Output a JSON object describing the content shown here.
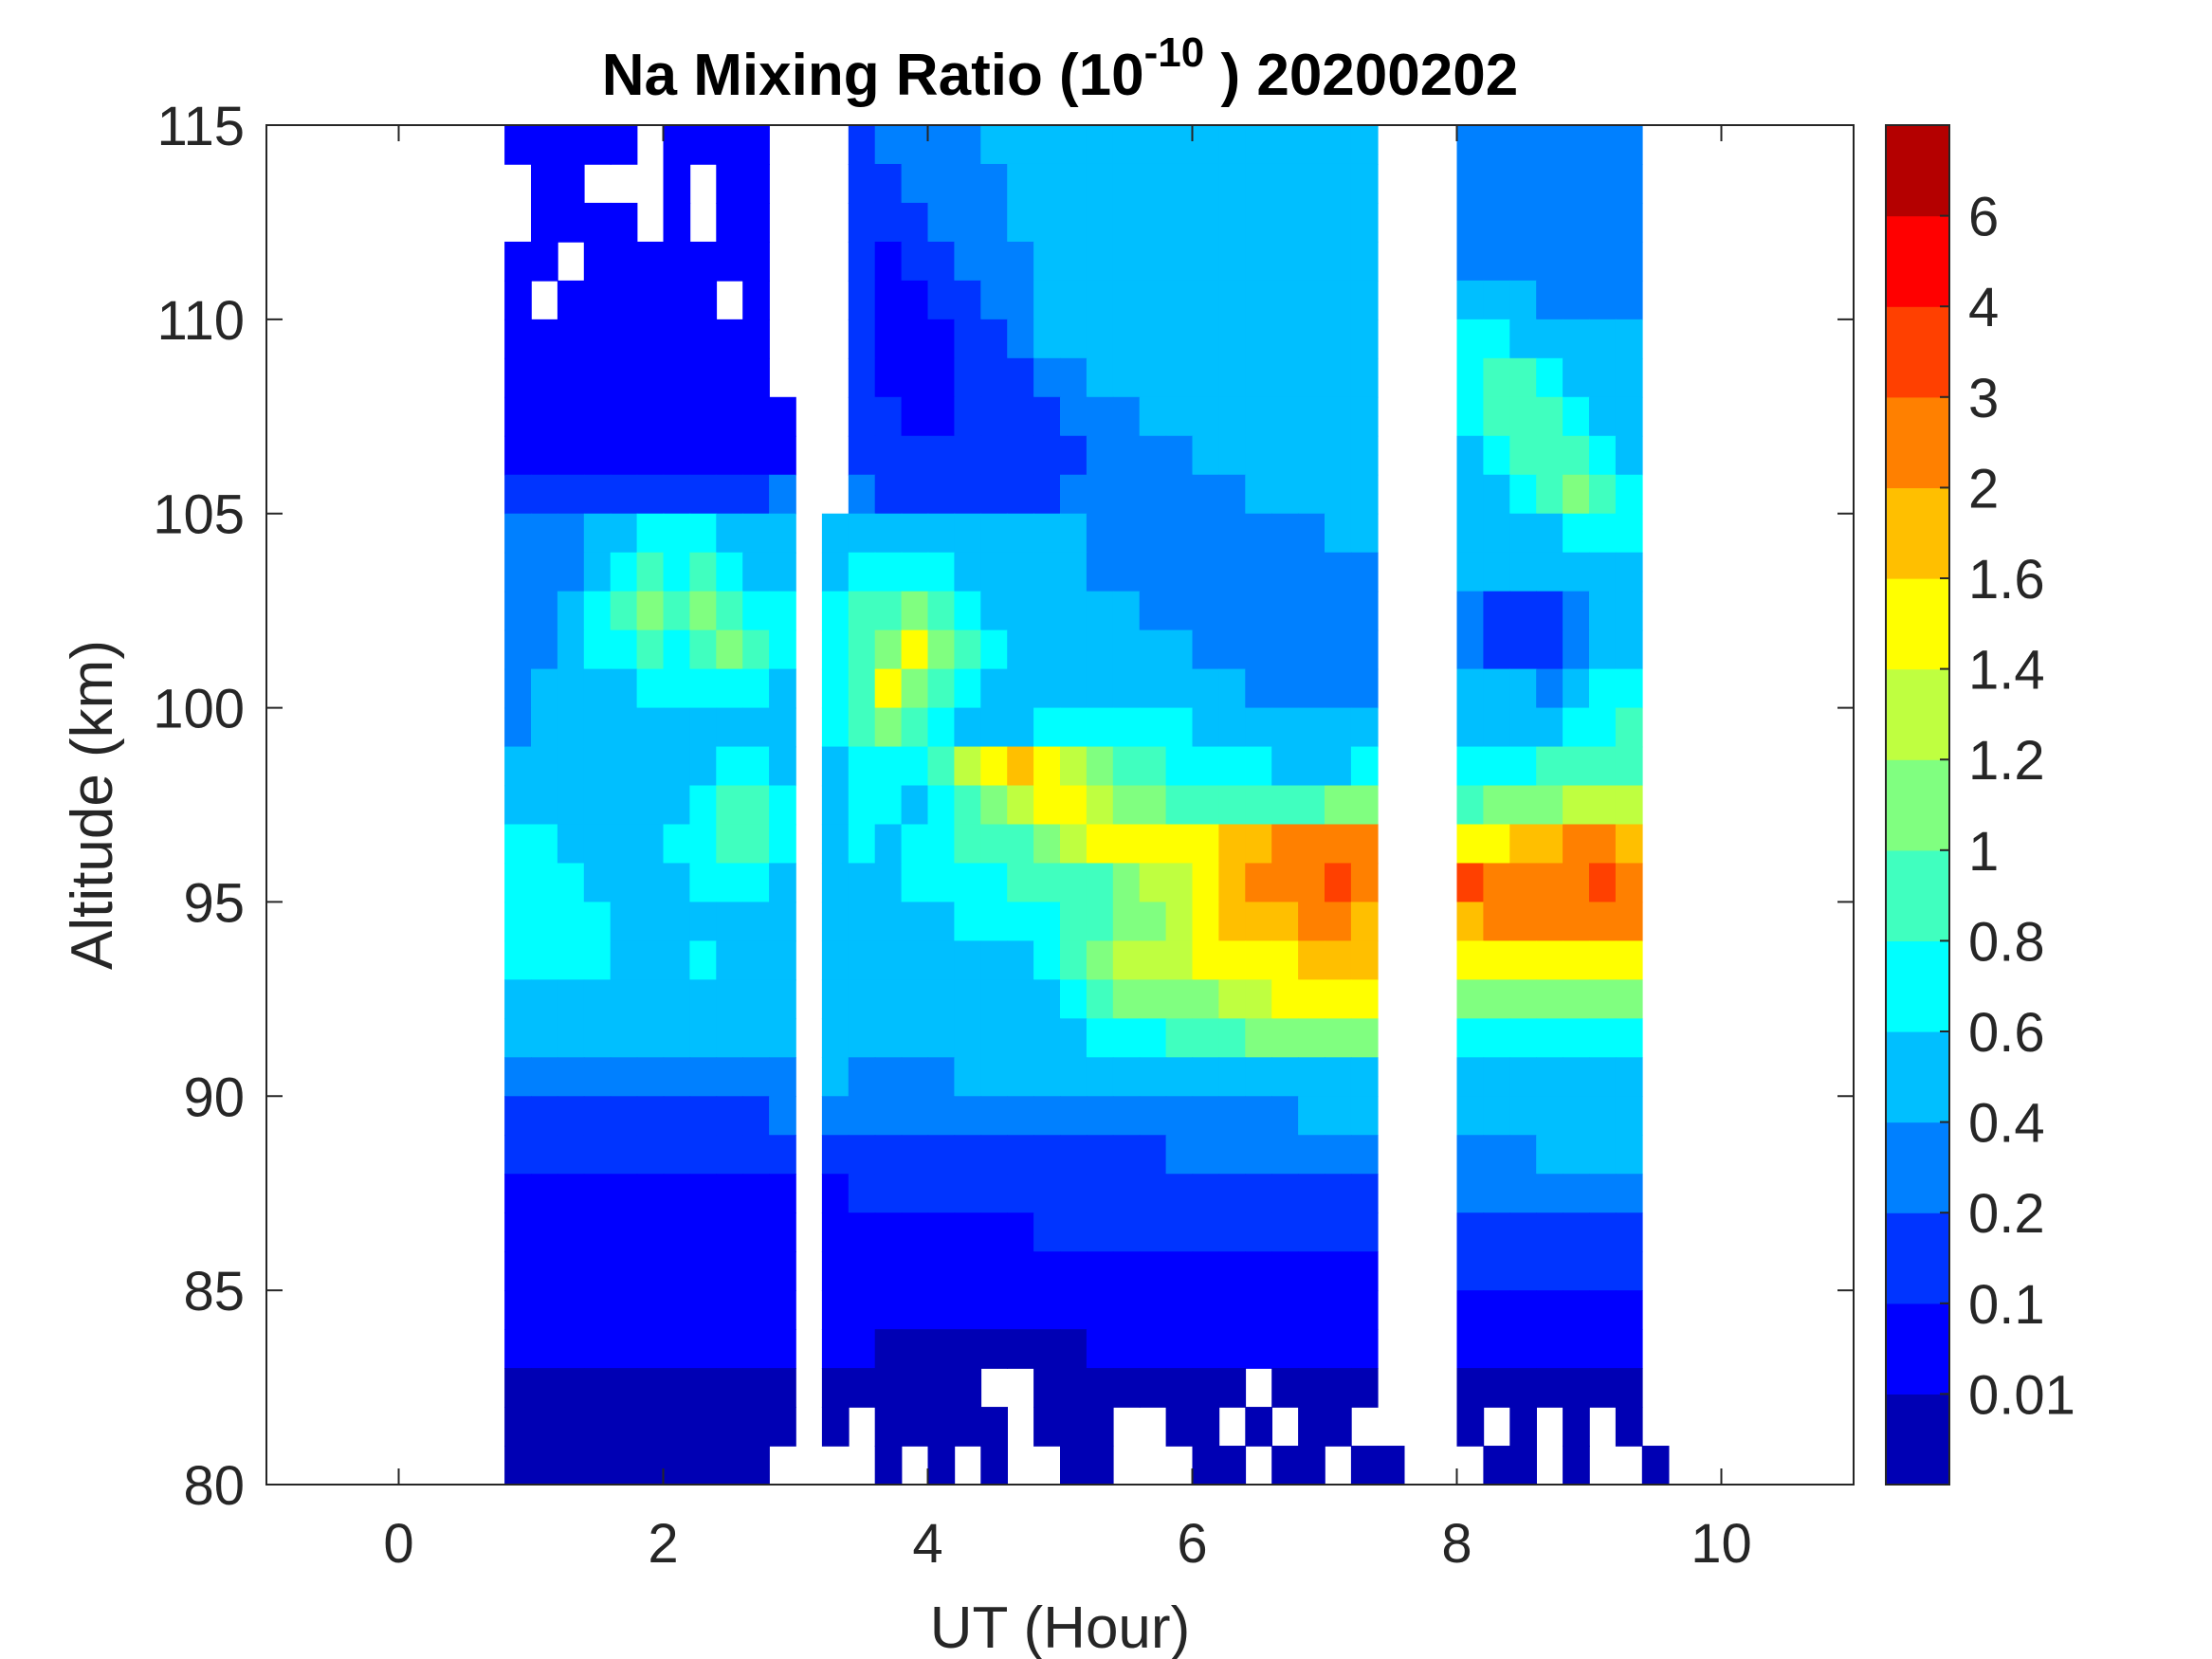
{
  "chart_data": {
    "type": "heatmap",
    "subtype": "filled-contour",
    "title": {
      "main": "Na Mixing Ratio (10",
      "exponent": "-10",
      "tail": " ) 20200202"
    },
    "xlabel": "UT (Hour)",
    "ylabel": "Altitude (km)",
    "xlim": [
      -1,
      11
    ],
    "ylim": [
      80,
      115
    ],
    "xticks": [
      "0",
      "2",
      "4",
      "6",
      "8",
      "10"
    ],
    "xtick_values": [
      0,
      2,
      4,
      6,
      8,
      10
    ],
    "yticks": [
      "80",
      "85",
      "90",
      "95",
      "100",
      "105",
      "110",
      "115"
    ],
    "ytick_values": [
      80,
      85,
      90,
      95,
      100,
      105,
      110,
      115
    ],
    "colorbar": {
      "tick_labels": [
        "0.01",
        "0.1",
        "0.2",
        "0.4",
        "0.6",
        "0.8",
        "1",
        "1.2",
        "1.4",
        "1.6",
        "2",
        "3",
        "4",
        "6"
      ],
      "level_colors": [
        "#0000b4",
        "#0000ff",
        "#0034ff",
        "#0080ff",
        "#00bfff",
        "#00ffff",
        "#40ffbf",
        "#80ff80",
        "#bfff40",
        "#ffff00",
        "#ffbf00",
        "#ff8000",
        "#ff4000",
        "#ff0000",
        "#b40000"
      ]
    },
    "grid": {
      "x_start": 0.8,
      "x_step": 0.2,
      "y_top": 115,
      "y_step": 1,
      "encoding": "level index per cell: 0-9 then a-e = 10-14, '.' = no data",
      "rows": [
        "11111.1111...23333444444444444444...3333333",
        ".11...1.11...22333344444444444444...3333333",
        ".1111.1.11...22233344444444444444...3333333",
        "11.1111111...21223334444444444444...3333333",
        "1.111111.1...21122334444444444444...4443333",
        "1111111111...21112234444444444444...5544444",
        "1111111111...21112223344444444444...5665444",
        "11111111111..22112222333444444444...5666544",
        "11111111111..22222222233334444444...4566654",
        "22222222223..32222222333333344444...4456765",
        "33344555444.444444444433333333344...4444555",
        "33345656544.455554444433333333333...4444444",
        "33456767655.566765444444333333333...3222344",
        "33455656765.567976544444443333333...3222344",
        "34444555554.569765444444444433333...4443455",
        "34444444444.567654445555554444444...4444556",
        "44444444554.4555689a9876655554445...5556666",
        "44444445665.455456789987766666677...6777888",
        "55444455665.454556667899999aabbbb...99aabba",
        "55544445554.444555566667889abbbcb...cbbbbcb",
        "55554444444.444445555667789aaabba...abbbbbb",
        "55554445444.444444445678889999aaa...9999999",
        "44444444444.444444444567777889999...7777777",
        "44444444444.444444444455566677777...5555555",
        "33333333333.433334444444444444444...4444444",
        "22222222223.333333333333333333444...4444444",
        "22222222222.222222222222233333333...3334444",
        "11111111111.122222222222222222222...3333333",
        "11111111111.111111112222222222222...2222222",
        "11111111111.111111111111111111111...2222222",
        "11111111111.111111111111111111111...1111111",
        "11111111111.110000000011111111111...1111111",
        "00000000000.000000..00000000.0000...0000000",
        "00000000000.0.00000.000..00.0.00....0.0.0.0",
        "0000000000....0.0.0..00...00.00.00...00.0..0"
      ]
    }
  }
}
